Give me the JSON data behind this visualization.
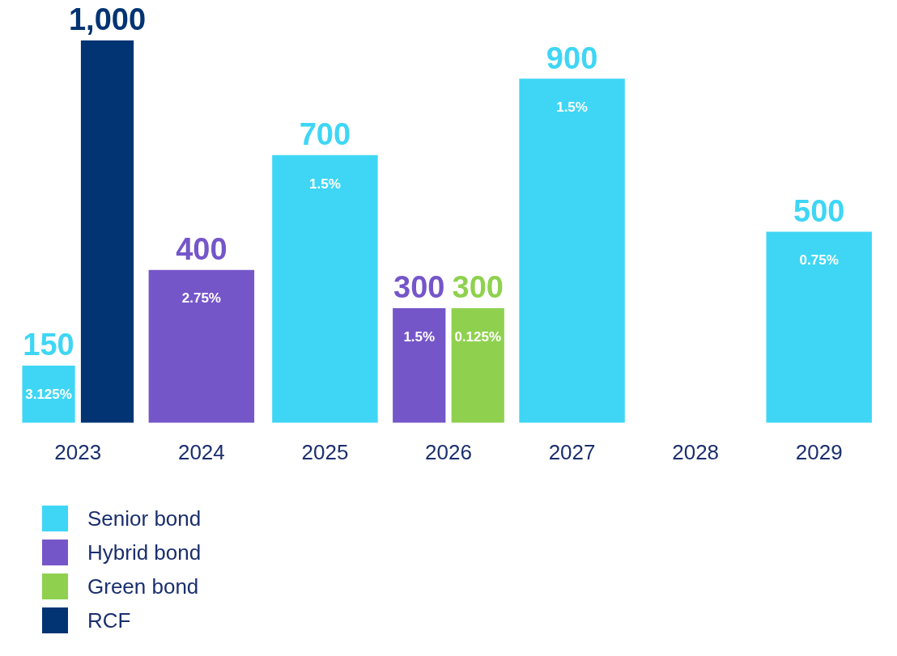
{
  "chart_data": {
    "type": "bar",
    "categories": [
      "2023",
      "2024",
      "2025",
      "2026",
      "2027",
      "2028",
      "2029"
    ],
    "series": [
      {
        "name": "Senior bond",
        "color": "#3fd6f5",
        "values": [
          150,
          null,
          700,
          null,
          900,
          null,
          500
        ],
        "value_labels": [
          "150",
          null,
          "700",
          null,
          "900",
          null,
          "500"
        ]
      },
      {
        "name": "Hybrid bond",
        "color": "#7556c9",
        "values": [
          null,
          400,
          null,
          300,
          null,
          null,
          null
        ],
        "value_labels": [
          null,
          "400",
          null,
          "300",
          null,
          null,
          null
        ]
      },
      {
        "name": "Green bond",
        "color": "#8fd14f",
        "values": [
          null,
          null,
          null,
          300,
          null,
          null,
          null
        ],
        "value_labels": [
          null,
          null,
          null,
          "300",
          null,
          null,
          null
        ]
      },
      {
        "name": "RCF",
        "color": "#023474",
        "values": [
          1000,
          null,
          null,
          null,
          null,
          null,
          null
        ],
        "value_labels": [
          "1,000",
          null,
          null,
          null,
          null,
          null,
          null
        ]
      }
    ],
    "annotations": [
      {
        "text": "3.125%",
        "x": "2023",
        "y": 150
      },
      {
        "text": "2.75%",
        "x": "2024",
        "y": 400
      },
      {
        "text": "1.5%",
        "x": "2025",
        "y": 700
      },
      {
        "text": "1.5%",
        "x": "2026",
        "y": 300
      },
      {
        "text": "0.125%",
        "x": "2026",
        "y": 300
      },
      {
        "text": "1.5%",
        "x": "2027",
        "y": 900
      },
      {
        "text": "0.75%",
        "x": "2029",
        "y": 500
      }
    ],
    "legend": "bottom left"
  }
}
